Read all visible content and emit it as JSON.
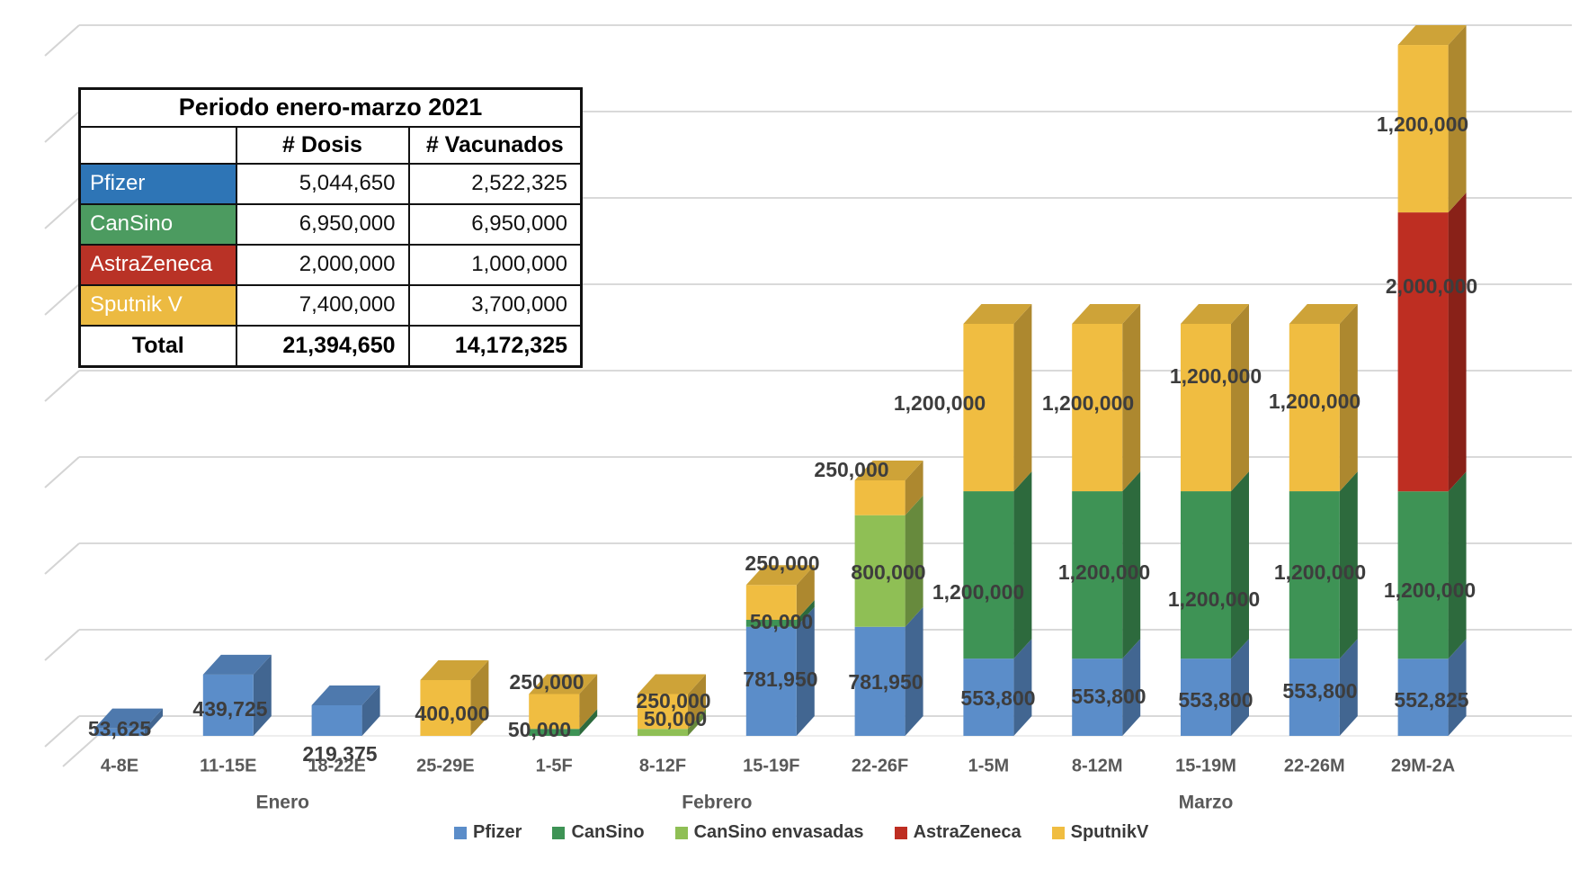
{
  "table": {
    "title": "Periodo enero-marzo 2021",
    "columns": [
      "",
      "# Dosis",
      "# Vacunados"
    ],
    "rows": [
      {
        "label": "Pfizer",
        "color": "#2E75B6",
        "dosis": "5,044,650",
        "vacunados": "2,522,325"
      },
      {
        "label": "CanSino",
        "color": "#4C9B60",
        "dosis": "6,950,000",
        "vacunados": "6,950,000"
      },
      {
        "label": "AstraZeneca",
        "color": "#B93226",
        "dosis": "2,000,000",
        "vacunados": "1,000,000"
      },
      {
        "label": "Sputnik V",
        "color": "#ECBA41",
        "dosis": "7,400,000",
        "vacunados": "3,700,000"
      }
    ],
    "total": {
      "label": "Total",
      "dosis": "21,394,650",
      "vacunados": "14,172,325"
    }
  },
  "legend": {
    "items": [
      {
        "label": "Pfizer",
        "color": "#5B8DC9"
      },
      {
        "label": "CanSino",
        "color": "#3E9355"
      },
      {
        "label": "CanSino envasadas",
        "color": "#8FBF55"
      },
      {
        "label": "AstraZeneca",
        "color": "#BE2E22"
      },
      {
        "label": "SputnikV",
        "color": "#F0BD41"
      }
    ]
  },
  "chart_data": {
    "type": "bar",
    "stacked": true,
    "effect": "3d-column",
    "title": "",
    "xlabel": "",
    "ylabel": "",
    "value_axis_labels_visible": false,
    "gridlines": true,
    "ylim": [
      0,
      5000000
    ],
    "categories": [
      "4-8E",
      "11-15E",
      "18-22E",
      "25-29E",
      "1-5F",
      "8-12F",
      "15-19F",
      "22-26F",
      "1-5M",
      "8-12M",
      "15-19M",
      "22-26M",
      "29M-2A"
    ],
    "month_groups": [
      {
        "label": "Enero",
        "span": [
          0,
          3
        ]
      },
      {
        "label": "Febrero",
        "span": [
          4,
          7
        ]
      },
      {
        "label": "Marzo",
        "span": [
          8,
          12
        ]
      }
    ],
    "series": [
      {
        "name": "Pfizer",
        "color": "#5B8DC9",
        "values": [
          53625,
          439725,
          219375,
          0,
          0,
          0,
          781950,
          781950,
          553800,
          553800,
          553800,
          553800,
          552825
        ]
      },
      {
        "name": "CanSino",
        "color": "#3E9355",
        "values": [
          0,
          0,
          0,
          0,
          50000,
          0,
          50000,
          0,
          1200000,
          1200000,
          1200000,
          1200000,
          1200000
        ]
      },
      {
        "name": "CanSino envasadas",
        "color": "#8FBF55",
        "values": [
          0,
          0,
          0,
          0,
          0,
          50000,
          0,
          800000,
          0,
          0,
          0,
          0,
          0
        ]
      },
      {
        "name": "AstraZeneca",
        "color": "#BE2E22",
        "values": [
          0,
          0,
          0,
          0,
          0,
          0,
          0,
          0,
          0,
          0,
          0,
          0,
          2000000
        ]
      },
      {
        "name": "SputnikV",
        "color": "#F0BD41",
        "values": [
          0,
          0,
          0,
          400000,
          250000,
          250000,
          250000,
          250000,
          1200000,
          1200000,
          1200000,
          1200000,
          1200000
        ]
      }
    ]
  }
}
